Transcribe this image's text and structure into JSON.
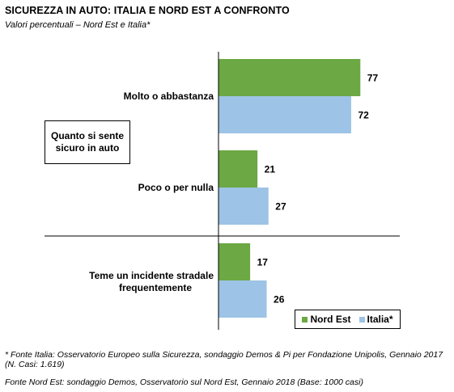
{
  "title": "SICUREZZA IN AUTO: ITALIA  E NORD EST A CONFRONTO",
  "subtitle": "Valori percentuali – Nord Est e Italia*",
  "question_box": "Quanto si sente sicuro in auto",
  "colors": {
    "nord_est": "#6ca843",
    "italia": "#9dc3e6"
  },
  "chart_data": {
    "type": "bar",
    "orientation": "horizontal",
    "categories": [
      "Molto o abbastanza",
      "Poco o per nulla",
      "Teme un incidente stradale frequentemente"
    ],
    "series": [
      {
        "name": "Nord Est",
        "values": [
          77,
          21,
          17
        ]
      },
      {
        "name": "Italia*",
        "values": [
          72,
          27,
          26
        ]
      }
    ],
    "xlim": [
      0,
      100
    ],
    "grid": false,
    "legend_position": "bottom-right",
    "data_labels": true
  },
  "footnotes": {
    "fonte_italia": "* Fonte Italia: Osservatorio Europeo sulla Sicurezza, sondaggio Demos & Pi per Fondazione Unipolis, Gennaio 2017 (N. Casi: 1.619)",
    "fonte_nord_est": "Fonte Nord Est: sondaggio Demos, Osservatorio sul Nord Est, Gennaio 2018 (Base: 1000 casi)"
  }
}
